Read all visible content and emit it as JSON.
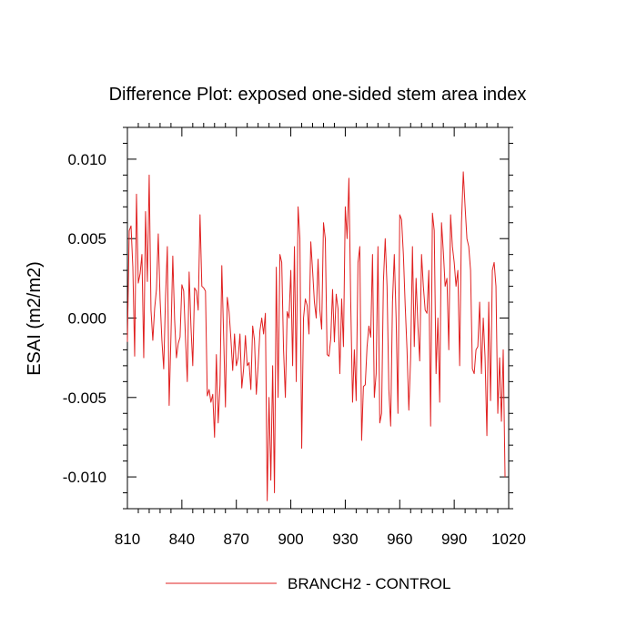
{
  "chart_data": {
    "type": "line",
    "title": "Difference Plot: exposed one-sided stem area index",
    "xlabel": "",
    "ylabel": "ESAI  (m2/m2)",
    "xlim": [
      810,
      1020
    ],
    "ylim": [
      -0.012,
      0.012
    ],
    "xticks": [
      810,
      840,
      870,
      900,
      930,
      960,
      990,
      1020
    ],
    "xtick_labels": [
      "810",
      "840",
      "870",
      "900",
      "930",
      "960",
      "990",
      "1020"
    ],
    "yticks": [
      -0.01,
      -0.005,
      0.0,
      0.005,
      0.01
    ],
    "ytick_labels": [
      "-0.010",
      "-0.005",
      "0.000",
      "0.005",
      "0.010"
    ],
    "grid": false,
    "legend_position": "bottom-center",
    "series": [
      {
        "name": "BRANCH2 - CONTROL",
        "color": "#e02020",
        "x_start": 810,
        "x_step": 1,
        "values": [
          -0.0015,
          0.0055,
          0.0058,
          0.0032,
          -0.0024,
          0.0078,
          0.0022,
          0.0028,
          0.004,
          -0.0025,
          0.0067,
          0.0023,
          0.009,
          0.0005,
          -0.0014,
          0.0006,
          0.0018,
          0.0053,
          0.0012,
          -0.0014,
          -0.0032,
          0.0013,
          0.0045,
          -0.0055,
          -0.0011,
          0.0039,
          -0.0001,
          -0.0025,
          -0.0016,
          -0.0012,
          0.0021,
          0.0017,
          -0.0013,
          -0.004,
          0.0029,
          -0.0005,
          -0.003,
          0.0019,
          0.0017,
          0.0005,
          0.0065,
          0.002,
          0.0019,
          0.0017,
          -0.0049,
          -0.0045,
          -0.0053,
          -0.0048,
          -0.0075,
          -0.0023,
          -0.0066,
          -0.0042,
          0.0033,
          -0.0011,
          -0.0056,
          0.0013,
          0.0004,
          -0.0013,
          -0.0033,
          -0.001,
          -0.003,
          -0.0025,
          -0.001,
          -0.0044,
          -0.0032,
          -0.0011,
          -0.003,
          -0.0028,
          -0.0045,
          -0.0005,
          -0.0014,
          -0.0048,
          -0.003,
          -0.0008,
          0.0,
          -0.001,
          0.0003,
          -0.0115,
          -0.005,
          -0.0102,
          -0.003,
          -0.011,
          0.0032,
          -0.005,
          0.004,
          0.0035,
          -0.002,
          -0.005,
          0.0004,
          0.0,
          0.003,
          -0.003,
          0.0045,
          -0.004,
          0.007,
          0.005,
          -0.0082,
          0.0,
          0.0012,
          0.0008,
          -0.001,
          0.0048,
          0.003,
          0.001,
          0.0,
          0.0037,
          0.0005,
          -0.0007,
          0.006,
          0.005,
          -0.0023,
          -0.0024,
          -0.0013,
          0.0018,
          -0.0015,
          0.0015,
          0.0006,
          -0.0035,
          0.0012,
          -0.0018,
          0.007,
          0.005,
          0.0088,
          0.001,
          -0.0053,
          -0.002,
          -0.0052,
          0.0035,
          0.0045,
          -0.0077,
          -0.0043,
          -0.0042,
          -0.0018,
          -0.0005,
          -0.0012,
          0.004,
          -0.005,
          -0.0035,
          0.0045,
          -0.0066,
          -0.006,
          0.0023,
          0.005,
          0.002,
          -0.0045,
          -0.0068,
          0.001,
          0.004,
          0.0,
          -0.006,
          0.0065,
          0.0062,
          0.004,
          0.0008,
          -0.002,
          -0.0058,
          -0.0025,
          0.0045,
          -0.0018,
          0.0025,
          -0.0005,
          -0.0027,
          0.004,
          0.002,
          0.0005,
          0.0003,
          0.003,
          -0.0068,
          0.0066,
          0.0055,
          -0.0035,
          0.0,
          -0.0053,
          0.006,
          0.0042,
          0.002,
          0.0025,
          -0.002,
          0.0065,
          0.0045,
          0.0035,
          0.002,
          0.003,
          -0.003,
          0.006,
          0.0092,
          0.007,
          0.005,
          0.0045,
          0.003,
          -0.0032,
          -0.0035,
          -0.002,
          -0.0018,
          0.001,
          -0.0035,
          0.0,
          -0.0025,
          -0.0074,
          0.001,
          -0.0052,
          0.003,
          0.0035,
          0.002,
          -0.006,
          -0.0025,
          -0.0065,
          -0.002,
          -0.01
        ]
      }
    ]
  }
}
